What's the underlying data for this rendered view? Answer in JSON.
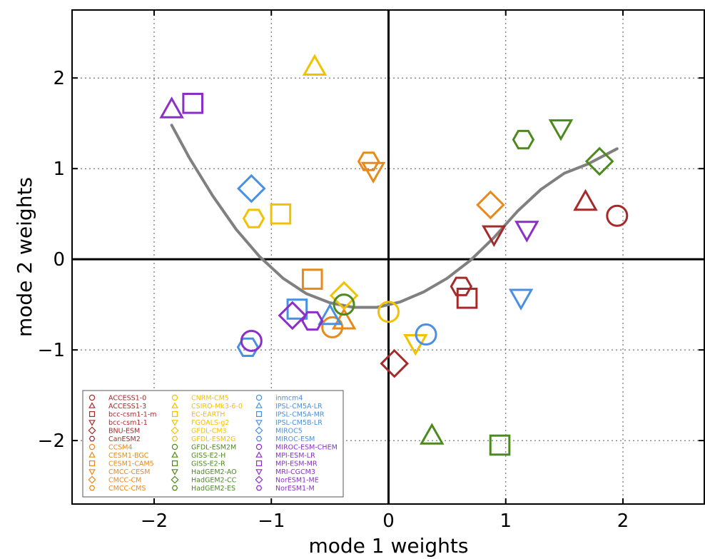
{
  "chart_data": {
    "type": "scatter",
    "xlabel": "mode 1 weights",
    "ylabel": "mode 2 weights",
    "xlim": [
      -2.7,
      2.7
    ],
    "ylim": [
      -2.7,
      2.75
    ],
    "xticks": [
      -2,
      -1,
      0,
      1,
      2
    ],
    "yticks": [
      -2,
      -1,
      0,
      1,
      2
    ],
    "xtick_labels": [
      "−2",
      "−1",
      "0",
      "1",
      "2"
    ],
    "ytick_labels": [
      "−2",
      "−1",
      "0",
      "1",
      "2"
    ],
    "grid": true,
    "zero_lines": true,
    "legend_placement": "lower-left",
    "curve": {
      "color": "#808080",
      "x": [
        -1.85,
        -1.7,
        -1.5,
        -1.3,
        -1.1,
        -0.9,
        -0.7,
        -0.5,
        -0.3,
        -0.1,
        0.1,
        0.3,
        0.5,
        0.7,
        0.9,
        1.1,
        1.3,
        1.5,
        1.7,
        1.95
      ],
      "y": [
        1.48,
        1.12,
        0.7,
        0.33,
        0.03,
        -0.21,
        -0.38,
        -0.48,
        -0.53,
        -0.53,
        -0.47,
        -0.36,
        -0.21,
        -0.01,
        0.24,
        0.53,
        0.77,
        0.95,
        1.05,
        1.22
      ]
    },
    "series": [
      {
        "name": "ACCESS1-0",
        "marker": "circle",
        "color": "#a52a2a",
        "x": 1.95,
        "y": 0.48
      },
      {
        "name": "ACCESS1-3",
        "marker": "triangle-up",
        "color": "#a52a2a",
        "x": 1.68,
        "y": 0.63
      },
      {
        "name": "bcc-csm1-1-m",
        "marker": "square",
        "color": "#a52a2a",
        "x": 0.67,
        "y": -0.43
      },
      {
        "name": "bcc-csm1-1",
        "marker": "triangle-down",
        "color": "#a52a2a",
        "x": 0.9,
        "y": 0.28
      },
      {
        "name": "BNU-ESM",
        "marker": "diamond",
        "color": "#a52a2a",
        "x": 0.05,
        "y": -1.15
      },
      {
        "name": "CanESM2",
        "marker": "hexagon",
        "color": "#a52a2a",
        "x": 0.62,
        "y": -0.3
      },
      {
        "name": "CCSM4",
        "marker": "circle",
        "color": "#e8891a",
        "x": -0.48,
        "y": -0.75
      },
      {
        "name": "CESM1-BGC",
        "marker": "triangle-up",
        "color": "#e8891a",
        "x": -0.38,
        "y": -0.68
      },
      {
        "name": "CESM1-CAM5",
        "marker": "square",
        "color": "#e8891a",
        "x": -0.65,
        "y": -0.22
      },
      {
        "name": "CMCC-CESM",
        "marker": "triangle-down",
        "color": "#e8891a",
        "x": -0.13,
        "y": 0.98
      },
      {
        "name": "CMCC-CM",
        "marker": "diamond",
        "color": "#e8891a",
        "x": 0.87,
        "y": 0.6
      },
      {
        "name": "CMCC-CMS",
        "marker": "hexagon",
        "color": "#e8891a",
        "x": -0.17,
        "y": 1.08
      },
      {
        "name": "CNRM-CM5",
        "marker": "circle",
        "color": "#f2c200",
        "x": 0.0,
        "y": -0.58
      },
      {
        "name": "CSIRO-Mk3-6-0",
        "marker": "triangle-up",
        "color": "#f2c200",
        "x": -0.63,
        "y": 2.12
      },
      {
        "name": "EC-EARTH",
        "marker": "square",
        "color": "#f2c200",
        "x": -0.92,
        "y": 0.5
      },
      {
        "name": "FGOALS-g2",
        "marker": "triangle-down",
        "color": "#f2c200",
        "x": 0.23,
        "y": -0.92
      },
      {
        "name": "GFDL-CM3",
        "marker": "diamond",
        "color": "#f2c200",
        "x": -0.38,
        "y": -0.4
      },
      {
        "name": "GFDL-ESM2G",
        "marker": "hexagon",
        "color": "#f2c200",
        "x": -1.15,
        "y": 0.45
      },
      {
        "name": "GFDL-ESM2M",
        "marker": "circle",
        "color": "#4d8a1e",
        "x": -0.38,
        "y": -0.5
      },
      {
        "name": "GISS-E2-H",
        "marker": "triangle-up",
        "color": "#4d8a1e",
        "x": 0.37,
        "y": -1.95
      },
      {
        "name": "GISS-E2-R",
        "marker": "square",
        "color": "#4d8a1e",
        "x": 0.95,
        "y": -2.05
      },
      {
        "name": "HadGEM2-AO",
        "marker": "triangle-down",
        "color": "#4d8a1e",
        "x": 1.47,
        "y": 1.45
      },
      {
        "name": "HadGEM2-CC",
        "marker": "diamond",
        "color": "#4d8a1e",
        "x": 1.8,
        "y": 1.08
      },
      {
        "name": "HadGEM2-ES",
        "marker": "hexagon",
        "color": "#4d8a1e",
        "x": 1.15,
        "y": 1.32
      },
      {
        "name": "inmcm4",
        "marker": "circle",
        "color": "#4a90e2",
        "x": 0.32,
        "y": -0.83
      },
      {
        "name": "IPSL-CM5A-LR",
        "marker": "triangle-up",
        "color": "#4a90e2",
        "x": -0.5,
        "y": -0.63
      },
      {
        "name": "IPSL-CM5A-MR",
        "marker": "square",
        "color": "#4a90e2",
        "x": -0.78,
        "y": -0.55
      },
      {
        "name": "IPSL-CM5B-LR",
        "marker": "triangle-down",
        "color": "#4a90e2",
        "x": 1.13,
        "y": -0.42
      },
      {
        "name": "MIROC5",
        "marker": "diamond",
        "color": "#4a90e2",
        "x": -1.17,
        "y": 0.78
      },
      {
        "name": "MIROC-ESM",
        "marker": "hexagon",
        "color": "#4a90e2",
        "x": -1.2,
        "y": -0.97
      },
      {
        "name": "MIROC-ESM-CHEM",
        "marker": "circle",
        "color": "#8b2fc9",
        "x": -1.17,
        "y": -0.9
      },
      {
        "name": "MPI-ESM-LR",
        "marker": "triangle-up",
        "color": "#8b2fc9",
        "x": -1.85,
        "y": 1.65
      },
      {
        "name": "MPI-ESM-MR",
        "marker": "square",
        "color": "#8b2fc9",
        "x": -1.67,
        "y": 1.72
      },
      {
        "name": "MRI-CGCM3",
        "marker": "triangle-down",
        "color": "#8b2fc9",
        "x": 1.18,
        "y": 0.33
      },
      {
        "name": "NorESM1-ME",
        "marker": "diamond",
        "color": "#8b2fc9",
        "x": -0.82,
        "y": -0.62
      },
      {
        "name": "NorESM1-M",
        "marker": "hexagon",
        "color": "#8b2fc9",
        "x": -0.65,
        "y": -0.68
      }
    ]
  }
}
